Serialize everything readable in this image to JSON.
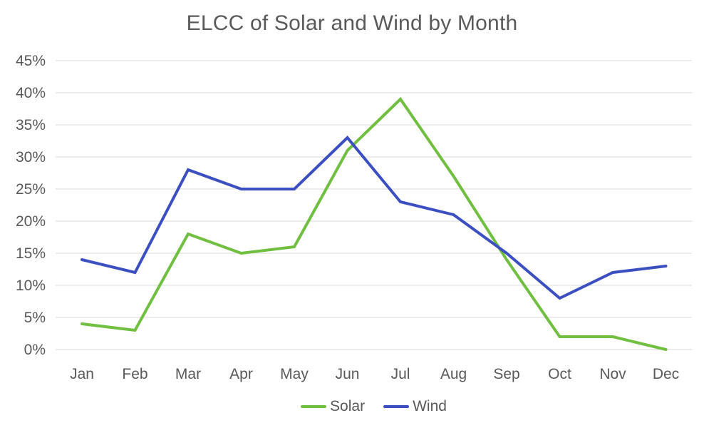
{
  "title": "ELCC of Solar and Wind by Month",
  "colors": {
    "solar": "#70BF41",
    "wind": "#3C4FC1",
    "grid": "#D9D9D9",
    "text": "#595959",
    "background": "#FFFFFF"
  },
  "legend": {
    "position": "bottom-center",
    "items": [
      {
        "label": "Solar",
        "color": "#70BF41"
      },
      {
        "label": "Wind",
        "color": "#3C4FC1"
      }
    ]
  },
  "chart_data": {
    "type": "line",
    "title": "ELCC of Solar and Wind by Month",
    "xlabel": "",
    "ylabel": "",
    "categories": [
      "Jan",
      "Feb",
      "Mar",
      "Apr",
      "May",
      "Jun",
      "Jul",
      "Aug",
      "Sep",
      "Oct",
      "Nov",
      "Dec"
    ],
    "series": [
      {
        "name": "Solar",
        "color": "#70BF41",
        "values": [
          4,
          3,
          18,
          15,
          16,
          31,
          39,
          27,
          14,
          2,
          2,
          0
        ]
      },
      {
        "name": "Wind",
        "color": "#3C4FC1",
        "values": [
          14,
          12,
          28,
          25,
          25,
          33,
          23,
          21,
          15,
          8,
          12,
          13
        ]
      }
    ],
    "ylim": [
      0,
      45
    ],
    "ytick_step": 5,
    "ytick_labels": [
      "0%",
      "5%",
      "10%",
      "15%",
      "20%",
      "25%",
      "30%",
      "35%",
      "40%",
      "45%"
    ],
    "ytick_format": "percent",
    "grid": "horizontal",
    "axis_lines": "none",
    "legend_position": "bottom"
  }
}
